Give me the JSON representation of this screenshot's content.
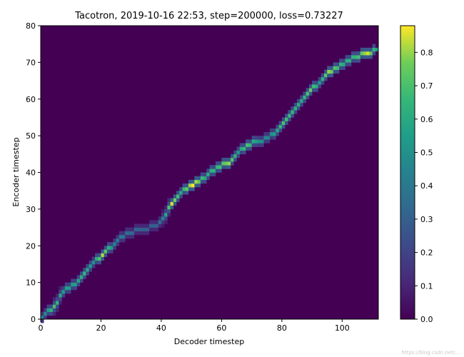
{
  "chart_data": {
    "type": "heatmap",
    "title": "Tacotron, 2019-10-16 22:53, step=200000, loss=0.73227",
    "xlabel": "Decoder timestep",
    "ylabel": "Encoder timestep",
    "xlim": [
      0,
      112
    ],
    "ylim": [
      0,
      80
    ],
    "xticks": [
      0,
      20,
      40,
      60,
      80,
      100
    ],
    "yticks": [
      0,
      10,
      20,
      30,
      40,
      50,
      60,
      70,
      80
    ],
    "colorbar": {
      "min": 0.0,
      "max": 0.88,
      "ticks": [
        0.0,
        0.1,
        0.2,
        0.3,
        0.4,
        0.5,
        0.6,
        0.7,
        0.8
      ],
      "tick_labels": [
        "0.0",
        "0.1",
        "0.2",
        "0.3",
        "0.4",
        "0.5",
        "0.6",
        "0.7",
        "0.8"
      ],
      "colormap": "viridis"
    },
    "grid": false,
    "alignment_path": [
      {
        "x": 0,
        "y": 0,
        "v": 0.4
      },
      {
        "x": 4,
        "y": 3,
        "v": 0.7
      },
      {
        "x": 7,
        "y": 7,
        "v": 0.55
      },
      {
        "x": 11,
        "y": 9,
        "v": 0.55
      },
      {
        "x": 14,
        "y": 12,
        "v": 0.65
      },
      {
        "x": 17,
        "y": 15,
        "v": 0.5
      },
      {
        "x": 20,
        "y": 17,
        "v": 0.82
      },
      {
        "x": 24,
        "y": 20,
        "v": 0.45
      },
      {
        "x": 28,
        "y": 23,
        "v": 0.35
      },
      {
        "x": 33,
        "y": 24,
        "v": 0.3
      },
      {
        "x": 38,
        "y": 25,
        "v": 0.3
      },
      {
        "x": 40,
        "y": 27,
        "v": 0.45
      },
      {
        "x": 43,
        "y": 31,
        "v": 0.85
      },
      {
        "x": 46,
        "y": 34,
        "v": 0.6
      },
      {
        "x": 50,
        "y": 36,
        "v": 0.88
      },
      {
        "x": 54,
        "y": 38,
        "v": 0.6
      },
      {
        "x": 58,
        "y": 41,
        "v": 0.65
      },
      {
        "x": 62,
        "y": 42,
        "v": 0.8
      },
      {
        "x": 65,
        "y": 45,
        "v": 0.55
      },
      {
        "x": 68,
        "y": 47,
        "v": 0.7
      },
      {
        "x": 72,
        "y": 48,
        "v": 0.5
      },
      {
        "x": 75,
        "y": 49,
        "v": 0.45
      },
      {
        "x": 78,
        "y": 51,
        "v": 0.6
      },
      {
        "x": 80,
        "y": 53,
        "v": 0.7
      },
      {
        "x": 83,
        "y": 56,
        "v": 0.65
      },
      {
        "x": 86,
        "y": 59,
        "v": 0.6
      },
      {
        "x": 89,
        "y": 62,
        "v": 0.75
      },
      {
        "x": 92,
        "y": 64,
        "v": 0.55
      },
      {
        "x": 95,
        "y": 67,
        "v": 0.8
      },
      {
        "x": 100,
        "y": 69,
        "v": 0.6
      },
      {
        "x": 104,
        "y": 71,
        "v": 0.65
      },
      {
        "x": 108,
        "y": 72,
        "v": 0.85
      },
      {
        "x": 111,
        "y": 73,
        "v": 0.55
      }
    ]
  },
  "watermark": "https://blog.csdn.net/..."
}
